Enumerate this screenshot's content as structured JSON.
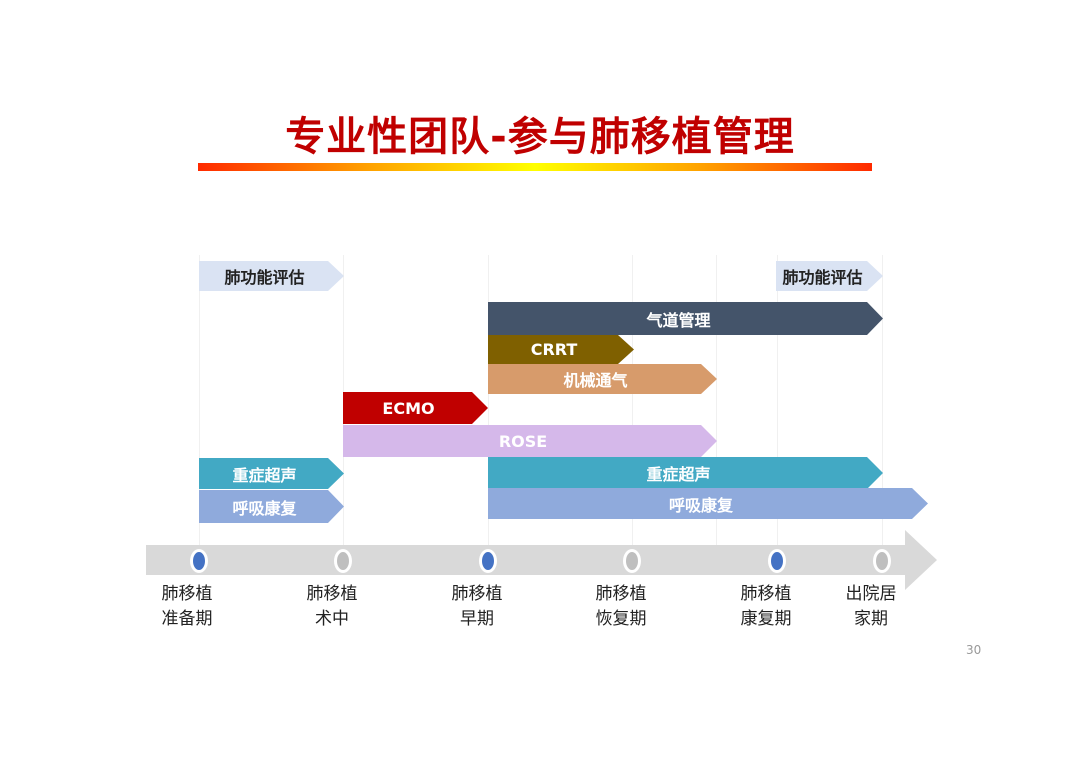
{
  "title": "专业性团队-参与肺移植管理",
  "page_number": "30",
  "colors": {
    "title": "#c00000",
    "timeline": "#d9d9d9",
    "dot_blue": "#4472c4",
    "dot_gray": "#bfbfbf"
  },
  "bars": [
    {
      "label": "肺功能评估",
      "color": "#dae3f3",
      "text_color": "#222"
    },
    {
      "label": "肺功能评估",
      "color": "#dae3f3",
      "text_color": "#222"
    },
    {
      "label": "气道管理",
      "color": "#44546a"
    },
    {
      "label": "CRRT",
      "color": "#7f6000"
    },
    {
      "label": "机械通气",
      "color": "#d79b6b"
    },
    {
      "label": "ECMO",
      "color": "#c00000"
    },
    {
      "label": "ROSE",
      "color": "#d5b8ea"
    },
    {
      "label": "重症超声",
      "color": "#42a9c4"
    },
    {
      "label": "重症超声",
      "color": "#42a9c4"
    },
    {
      "label": "呼吸康复",
      "color": "#8faadc"
    },
    {
      "label": "呼吸康复",
      "color": "#8faadc"
    }
  ],
  "stages": [
    {
      "line1": "肺移植",
      "line2": "准备期",
      "dot": "blue"
    },
    {
      "line1": "肺移植",
      "line2": "术中",
      "dot": "gray"
    },
    {
      "line1": "肺移植",
      "line2": "早期",
      "dot": "blue"
    },
    {
      "line1": "肺移植",
      "line2": "恢复期",
      "dot": "gray"
    },
    {
      "line1": "肺移植",
      "line2": "康复期",
      "dot": "blue"
    },
    {
      "line1": "出院居",
      "line2": "家期",
      "dot": "gray"
    }
  ]
}
